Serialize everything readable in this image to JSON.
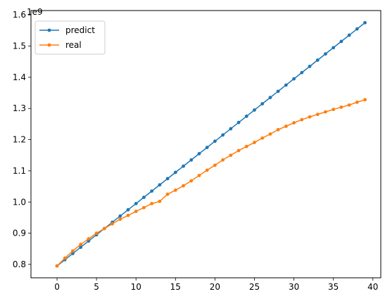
{
  "chart_data": {
    "type": "line",
    "x": [
      0,
      1,
      2,
      3,
      4,
      5,
      6,
      7,
      8,
      9,
      10,
      11,
      12,
      13,
      14,
      15,
      16,
      17,
      18,
      19,
      20,
      21,
      22,
      23,
      24,
      25,
      26,
      27,
      28,
      29,
      30,
      31,
      32,
      33,
      34,
      35,
      36,
      37,
      38,
      39
    ],
    "series": [
      {
        "name": "predict",
        "color": "#1f77b4",
        "values": [
          0.795,
          0.815,
          0.835,
          0.855,
          0.875,
          0.895,
          0.915,
          0.935,
          0.955,
          0.975,
          0.995,
          1.015,
          1.035,
          1.055,
          1.075,
          1.095,
          1.115,
          1.135,
          1.155,
          1.175,
          1.195,
          1.215,
          1.235,
          1.255,
          1.275,
          1.295,
          1.315,
          1.335,
          1.355,
          1.375,
          1.395,
          1.415,
          1.435,
          1.455,
          1.475,
          1.495,
          1.515,
          1.535,
          1.555,
          1.575
        ]
      },
      {
        "name": "real",
        "color": "#ff7f0e",
        "values": [
          0.795,
          0.82,
          0.843,
          0.864,
          0.882,
          0.9,
          0.915,
          0.93,
          0.945,
          0.957,
          0.97,
          0.982,
          0.995,
          1.002,
          1.025,
          1.038,
          1.052,
          1.068,
          1.085,
          1.102,
          1.118,
          1.135,
          1.15,
          1.165,
          1.178,
          1.191,
          1.205,
          1.218,
          1.232,
          1.243,
          1.254,
          1.264,
          1.273,
          1.281,
          1.289,
          1.297,
          1.304,
          1.311,
          1.32,
          1.328
        ]
      }
    ],
    "xlim": [
      -3.3,
      41.0
    ],
    "ylim": [
      0.757,
      1.614
    ],
    "x_ticks": [
      0,
      5,
      10,
      15,
      20,
      25,
      30,
      35,
      40
    ],
    "y_ticks": [
      0.8,
      0.9,
      1.0,
      1.1,
      1.2,
      1.3,
      1.4,
      1.5,
      1.6
    ],
    "y_tick_labels": [
      "0.8",
      "0.9",
      "1.0",
      "1.1",
      "1.2",
      "1.3",
      "1.4",
      "1.5",
      "1.6"
    ],
    "y_offset_label": "1e9",
    "grid": false,
    "legend_position": "top-left"
  }
}
